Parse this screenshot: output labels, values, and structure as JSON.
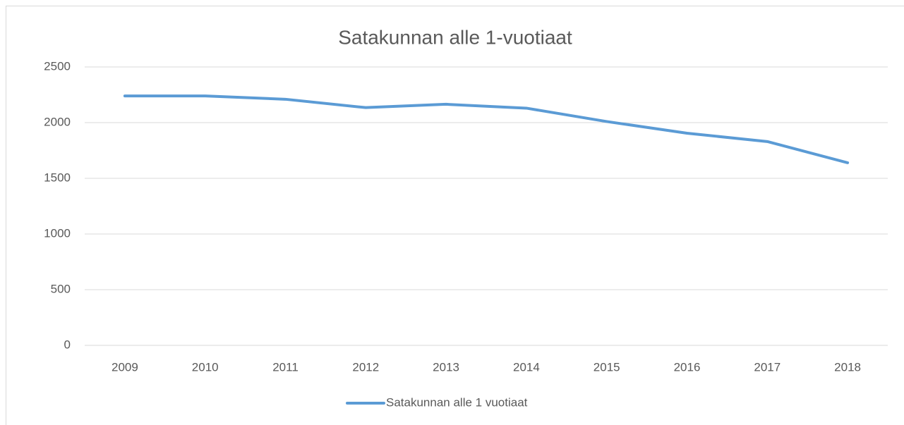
{
  "chart_data": {
    "type": "line",
    "title": "Satakunnan alle 1-vuotiaat",
    "categories": [
      "2009",
      "2010",
      "2011",
      "2012",
      "2013",
      "2014",
      "2015",
      "2016",
      "2017",
      "2018"
    ],
    "series": [
      {
        "name": "Satakunnan alle 1 vuotiaat",
        "color": "#5b9bd5",
        "values": [
          2240,
          2240,
          2210,
          2135,
          2165,
          2130,
          2010,
          1905,
          1830,
          1640
        ]
      }
    ],
    "ylim": [
      0,
      2500
    ],
    "yticks": [
      0,
      500,
      1000,
      1500,
      2000,
      2500
    ],
    "grid": true,
    "legend": "bottom"
  }
}
